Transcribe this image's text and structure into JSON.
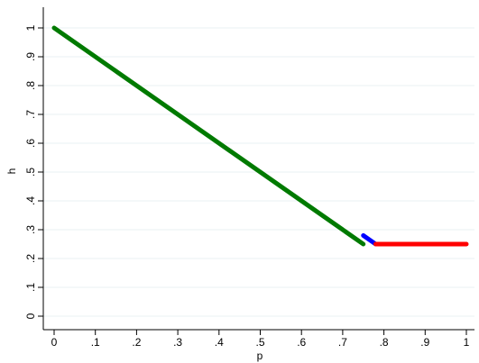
{
  "chart_data": {
    "type": "scatter",
    "title": "",
    "xlabel": "p",
    "ylabel": "h",
    "xlim": [
      0,
      1
    ],
    "ylim": [
      0,
      1
    ],
    "xticks": [
      "0",
      ".1",
      ".2",
      ".3",
      ".4",
      ".5",
      ".6",
      ".7",
      ".8",
      ".9",
      "1"
    ],
    "yticks": [
      "0",
      ".1",
      ".2",
      ".3",
      ".4",
      ".5",
      ".6",
      ".7",
      ".8",
      ".9",
      "1"
    ],
    "grid": true,
    "series": [
      {
        "color": "#007a00",
        "x": [
          0,
          0.75
        ],
        "y": [
          1,
          0.25
        ]
      },
      {
        "color": "#0000ff",
        "x": [
          0.75,
          0.78
        ],
        "y": [
          0.28,
          0.25
        ]
      },
      {
        "color": "#ff0000",
        "x": [
          0.78,
          1.0
        ],
        "y": [
          0.25,
          0.25
        ]
      }
    ]
  }
}
